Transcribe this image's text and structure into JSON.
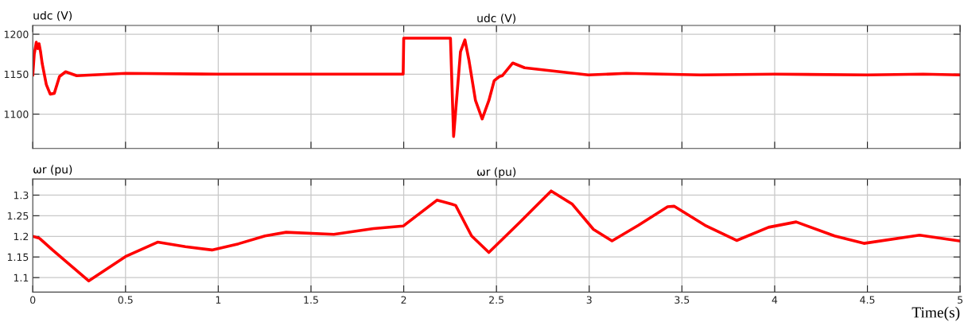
{
  "chart_data": [
    {
      "type": "line",
      "title": "udc (V)",
      "ylabel": "udc (V)",
      "grid": true,
      "tick_labels": "y",
      "xlim": [
        0,
        5
      ],
      "xticks": [
        0,
        0.5,
        1,
        1.5,
        2,
        2.5,
        3,
        3.5,
        4,
        4.5,
        5
      ],
      "ylim": [
        1057,
        1211
      ],
      "yticks": [
        1100,
        1150,
        1200
      ],
      "series": [
        {
          "color": "#ff0000",
          "x": [
            0,
            0.008,
            0.019,
            0.027,
            0.034,
            0.042,
            0.051,
            0.073,
            0.094,
            0.116,
            0.144,
            0.177,
            0.237,
            0.5,
            1.0,
            1.5,
            1.997,
            2.0,
            2.009,
            2.252,
            2.269,
            2.306,
            2.33,
            2.352,
            2.387,
            2.423,
            2.459,
            2.488,
            2.516,
            2.531,
            2.588,
            2.652,
            2.766,
            2.995,
            3.2,
            3.6,
            4.0,
            4.5,
            4.8,
            5.0
          ],
          "values": [
            1149,
            1175,
            1190,
            1182,
            1188,
            1178,
            1163,
            1137,
            1125,
            1126,
            1147,
            1153,
            1148,
            1151,
            1150,
            1150,
            1150,
            1195,
            1195,
            1195,
            1072,
            1178,
            1193,
            1167,
            1117,
            1094,
            1117,
            1142,
            1147,
            1148,
            1164,
            1158,
            1155,
            1149,
            1151,
            1149,
            1150,
            1149,
            1150,
            1149
          ]
        }
      ]
    },
    {
      "type": "line",
      "title": "ωr (pu)",
      "ylabel": "ωr (pu)",
      "xlabel": "Time(s)",
      "grid": true,
      "xlim": [
        0,
        5
      ],
      "xticks": [
        0,
        0.5,
        1,
        1.5,
        2,
        2.5,
        3,
        3.5,
        4,
        4.5,
        5
      ],
      "ylim": [
        1.065,
        1.339
      ],
      "yticks": [
        1.1,
        1.15,
        1.2,
        1.25,
        1.3
      ],
      "series": [
        {
          "color": "#ff0000",
          "x": [
            0,
            0.037,
            0.109,
            0.302,
            0.5,
            0.673,
            0.823,
            0.966,
            1.109,
            1.252,
            1.366,
            1.623,
            1.837,
            1.997,
            2.18,
            2.259,
            2.28,
            2.366,
            2.459,
            2.623,
            2.795,
            2.909,
            3.023,
            3.123,
            3.266,
            3.423,
            3.459,
            3.624,
            3.795,
            3.967,
            4.116,
            4.323,
            4.481,
            4.781,
            4.995
          ],
          "values": [
            1.2,
            1.195,
            1.166,
            1.092,
            1.151,
            1.186,
            1.175,
            1.167,
            1.182,
            1.201,
            1.21,
            1.205,
            1.219,
            1.225,
            1.288,
            1.278,
            1.275,
            1.201,
            1.161,
            1.233,
            1.31,
            1.278,
            1.217,
            1.189,
            1.227,
            1.272,
            1.273,
            1.227,
            1.19,
            1.222,
            1.235,
            1.201,
            1.183,
            1.203,
            1.189
          ]
        }
      ]
    }
  ]
}
